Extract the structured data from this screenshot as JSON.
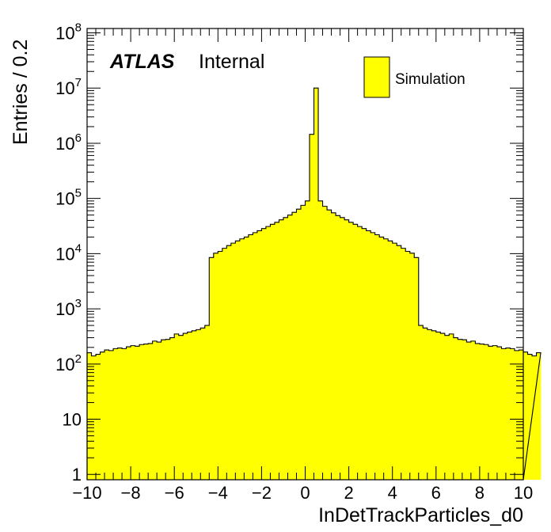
{
  "chart_data": {
    "type": "bar",
    "xlabel": "InDetTrackParticles_d0",
    "ylabel": "Entries / 0.2",
    "yscale": "log",
    "xlim": [
      -10,
      10
    ],
    "ylim": [
      0.8,
      120000000
    ],
    "bin_width": 0.2,
    "x_ticks": [
      -10,
      -8,
      -6,
      -4,
      -2,
      0,
      2,
      4,
      6,
      8,
      10
    ],
    "x_tick_labels": [
      "−10",
      "−8",
      "−6",
      "−4",
      "−2",
      "0",
      "2",
      "4",
      "6",
      "8",
      "10"
    ],
    "y_ticks": [
      {
        "value": 1,
        "base": "1",
        "exp": ""
      },
      {
        "value": 10,
        "base": "10",
        "exp": ""
      },
      {
        "value": 100,
        "base": "10",
        "exp": "2"
      },
      {
        "value": 1000,
        "base": "10",
        "exp": "3"
      },
      {
        "value": 10000,
        "base": "10",
        "exp": "4"
      },
      {
        "value": 100000,
        "base": "10",
        "exp": "5"
      },
      {
        "value": 1000000,
        "base": "10",
        "exp": "6"
      },
      {
        "value": 10000000,
        "base": "10",
        "exp": "7"
      },
      {
        "value": 100000000,
        "base": "10",
        "exp": "8"
      }
    ],
    "series": [
      {
        "name": "Simulation",
        "color": "#ffff00",
        "values": [
          160,
          140,
          150,
          165,
          180,
          175,
          190,
          195,
          190,
          205,
          215,
          210,
          225,
          230,
          235,
          260,
          250,
          275,
          280,
          300,
          350,
          330,
          360,
          380,
          400,
          420,
          450,
          500,
          8500,
          10200,
          11000,
          12500,
          14000,
          15500,
          17000,
          18500,
          20000,
          22000,
          24000,
          26000,
          28500,
          31000,
          34000,
          37000,
          41000,
          45000,
          50000,
          56000,
          64000,
          75000,
          90000,
          1450000,
          10000000,
          90000,
          72000,
          62000,
          55000,
          49000,
          45000,
          41000,
          37000,
          34000,
          31000,
          28500,
          26000,
          24000,
          22000,
          20000,
          18500,
          17000,
          15500,
          14000,
          12500,
          11000,
          10200,
          8500,
          500,
          450,
          420,
          400,
          380,
          360,
          330,
          350,
          300,
          280,
          275,
          250,
          260,
          235,
          230,
          225,
          210,
          215,
          205,
          190,
          195,
          190,
          175,
          180,
          165,
          150,
          140,
          160
        ]
      }
    ],
    "legend": {
      "position": "top-right",
      "entries": [
        "Simulation"
      ]
    },
    "annotations": {
      "atlas": "ATLAS",
      "label": "Internal"
    }
  }
}
